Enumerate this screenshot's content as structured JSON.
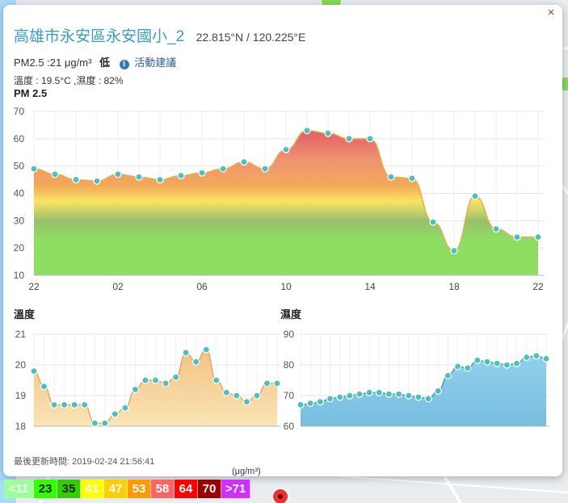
{
  "site": {
    "name": "高雄市永安區永安國小_2",
    "coords": "22.815°N / 120.225°E",
    "pm_text": "PM2.5 :21 μg/m³",
    "pm_level": "低",
    "advice_link": "活動建議",
    "weather_text": "溫度 : 19.5°C ,濕度 : 82%",
    "updated": "最後更新時間: 2019-02-24 21:56:41",
    "close_symbol": "×",
    "info_symbol": "i"
  },
  "chart_data": [
    {
      "type": "area",
      "title": "PM 2.5",
      "x_ticks": [
        "22",
        "02",
        "06",
        "10",
        "14",
        "18",
        "22"
      ],
      "ylim": [
        10,
        70
      ],
      "y_ticks": [
        10,
        20,
        30,
        40,
        50,
        60,
        70
      ],
      "values": [
        49,
        47,
        45,
        44.5,
        47,
        46,
        45,
        46.5,
        47.5,
        49,
        51.5,
        49,
        56,
        63,
        62,
        60,
        60,
        46,
        45.5,
        29.5,
        19,
        39,
        27,
        24,
        24
      ],
      "grid": true,
      "colors": [
        "#84db54",
        "#f2b24a",
        "#e15a5a"
      ]
    },
    {
      "type": "area",
      "title": "溫度",
      "ylim": [
        18,
        21
      ],
      "y_ticks": [
        18,
        19,
        20,
        21
      ],
      "values": [
        19.8,
        19.3,
        18.7,
        18.7,
        18.7,
        18.7,
        18.1,
        18.1,
        18.4,
        18.6,
        19.2,
        19.5,
        19.5,
        19.4,
        19.6,
        20.4,
        20.1,
        20.5,
        19.5,
        19.1,
        19.0,
        18.8,
        19.0,
        19.4,
        19.4
      ],
      "grid": true,
      "colors": [
        "#f7d9a0",
        "#f5c282"
      ]
    },
    {
      "type": "area",
      "title": "濕度",
      "ylim": [
        60,
        90
      ],
      "y_ticks": [
        60,
        70,
        80,
        90
      ],
      "values": [
        67,
        67.5,
        68,
        69,
        69.5,
        70,
        70.5,
        71,
        71,
        70.5,
        70.5,
        70,
        69.5,
        69,
        71.5,
        76.5,
        79.5,
        79,
        81.5,
        81,
        80.5,
        80,
        80.5,
        82.5,
        83,
        82
      ],
      "grid": true,
      "colors": [
        "#8ad0ee",
        "#5ba9d1"
      ]
    }
  ],
  "legend": {
    "unit": "(μg/m³)",
    "cells": [
      {
        "label": "<11",
        "bg": "#9cff9c",
        "fg": "#ffffff"
      },
      {
        "label": "23",
        "bg": "#31ff00",
        "fg": "#222222"
      },
      {
        "label": "35",
        "bg": "#31cf00",
        "fg": "#222222"
      },
      {
        "label": "41",
        "bg": "#ffff00",
        "fg": "#ffffff"
      },
      {
        "label": "47",
        "bg": "#ffcf00",
        "fg": "#ffffff"
      },
      {
        "label": "53",
        "bg": "#ff9a00",
        "fg": "#ffffff"
      },
      {
        "label": "58",
        "bg": "#ff6464",
        "fg": "#ffffff"
      },
      {
        "label": "64",
        "bg": "#ff0000",
        "fg": "#ffffff"
      },
      {
        "label": "70",
        "bg": "#990000",
        "fg": "#ffffff"
      },
      {
        "label": ">71",
        "bg": "#ce30ff",
        "fg": "#ffffff"
      }
    ]
  }
}
